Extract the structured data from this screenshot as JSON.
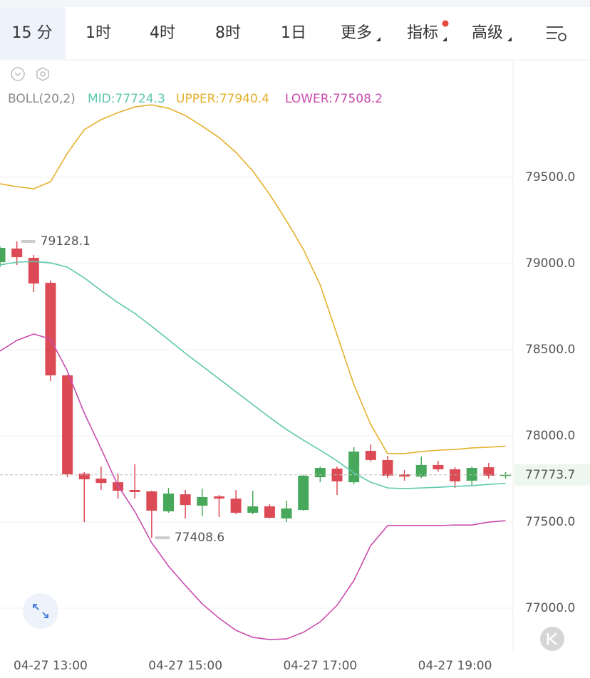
{
  "tabs": {
    "items": [
      "15 分",
      "1时",
      "4时",
      "8时",
      "1日",
      "更多",
      "指标",
      "高级"
    ],
    "active": 0
  },
  "chart_data": {
    "type": "candlestick",
    "indicator": "BOLL(20,2)",
    "categories": [
      null,
      null,
      null,
      "04-27 13:00",
      null,
      null,
      null,
      null,
      null,
      null,
      null,
      "04-27 15:00",
      null,
      null,
      null,
      null,
      null,
      null,
      null,
      "04-27 17:00",
      null,
      null,
      null,
      null,
      null,
      null,
      null,
      "04-27 19:00",
      null,
      null,
      null
    ],
    "open": [
      79008,
      79087,
      79033,
      78888,
      78351,
      77781,
      77752,
      77731,
      77686,
      77678,
      77562,
      77661,
      77595,
      77649,
      77636,
      77554,
      77591,
      77521,
      77570,
      77760,
      77810,
      77731,
      77913,
      77860,
      77777,
      77764,
      77831,
      77806,
      77740,
      77818,
      77769
    ],
    "high": [
      79100,
      79128.1,
      79050,
      78901,
      78355,
      77790,
      77822,
      77781,
      77835,
      77682,
      77698,
      77686,
      77694,
      77657,
      77686,
      77682,
      77603,
      77624,
      77773,
      77822,
      77822,
      77934,
      77950,
      77884,
      77802,
      77880,
      77855,
      77818,
      77822,
      77843,
      77790
    ],
    "low": [
      78980,
      78992,
      78835,
      78318,
      77760,
      77500,
      77686,
      77636,
      77636,
      77408.6,
      77554,
      77521,
      77533,
      77529,
      77545,
      77545,
      77521,
      77500,
      77566,
      77731,
      77657,
      77719,
      77851,
      77756,
      77740,
      77756,
      77793,
      77698,
      77711,
      77752,
      77752
    ],
    "close": [
      79091,
      79037,
      78884,
      78351,
      77777,
      77748,
      77727,
      77682,
      77674,
      77566,
      77665,
      77599,
      77645,
      77636,
      77554,
      77591,
      77525,
      77579,
      77769,
      77814,
      77736,
      77909,
      77860,
      77769,
      77764,
      77831,
      77806,
      77736,
      77814,
      77769,
      77773.7
    ],
    "up_color": "#47a85b",
    "down_color": "#dc4a55",
    "lines": [
      {
        "name": "MID:77724.3",
        "color": "#5ec8ae",
        "values": [
          78992,
          79008,
          79012,
          79004,
          78979,
          78917,
          78843,
          78773,
          78711,
          78636,
          78558,
          78479,
          78405,
          78331,
          78256,
          78182,
          78107,
          78037,
          77975,
          77917,
          77855,
          77785,
          77731,
          77698,
          77694,
          77698,
          77702,
          77707,
          77711,
          77719,
          77724.3
        ]
      },
      {
        "name": "UPPER:77940.4",
        "color": "#e6b02c",
        "values": [
          79463,
          79446,
          79434,
          79475,
          79640,
          79777,
          79835,
          79876,
          79909,
          79921,
          79901,
          79859,
          79797,
          79731,
          79645,
          79537,
          79401,
          79248,
          79083,
          78876,
          78587,
          78297,
          78066,
          77897,
          77897,
          77909,
          77917,
          77921,
          77930,
          77934,
          77940.4
        ]
      },
      {
        "name": "LOWER:77508.2",
        "color": "#c94cae",
        "values": [
          78492,
          78554,
          78591,
          78562,
          78376,
          78132,
          77926,
          77711,
          77562,
          77380,
          77244,
          77132,
          77025,
          76942,
          76872,
          76831,
          76818,
          76822,
          76860,
          76921,
          77017,
          77161,
          77364,
          77479,
          77479,
          77479,
          77479,
          77483,
          77483,
          77500,
          77508.2
        ]
      }
    ],
    "ylim": [
      76748,
      80178
    ],
    "yticks": [
      {
        "value": 77000,
        "label": "77000.0"
      },
      {
        "value": 77500,
        "label": "77500.0"
      },
      {
        "value": 78000,
        "label": "78000.0"
      },
      {
        "value": 78500,
        "label": "78500.0"
      },
      {
        "value": 79000,
        "label": "79000.0"
      },
      {
        "value": 79500,
        "label": "79500.0"
      }
    ],
    "grid": true,
    "last_price": 77773.7,
    "max_price": 79128.1,
    "min_price": 77408.6
  }
}
